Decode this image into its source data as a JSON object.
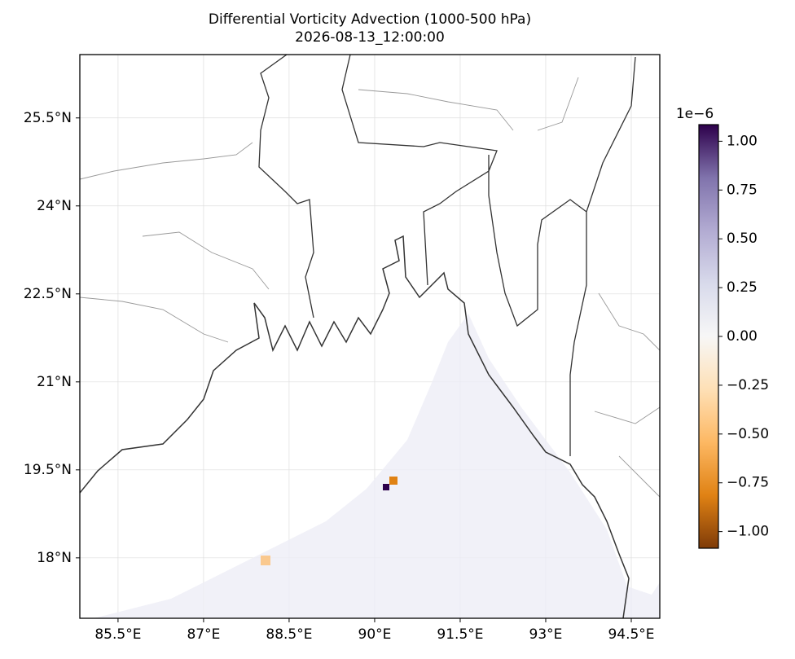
{
  "chart_data": {
    "type": "map",
    "title": "Differential Vorticity Advection (1000-500 hPa)",
    "subtitle": "2026-08-13_12:00:00",
    "xlim": [
      84.83,
      95.0
    ],
    "ylim": [
      16.97,
      26.58
    ],
    "xticks": [
      {
        "value": 85.5,
        "label": "85.5°E"
      },
      {
        "value": 87,
        "label": "87°E"
      },
      {
        "value": 88.5,
        "label": "88.5°E"
      },
      {
        "value": 90,
        "label": "90°E"
      },
      {
        "value": 91.5,
        "label": "91.5°E"
      },
      {
        "value": 93,
        "label": "93°E"
      },
      {
        "value": 94.5,
        "label": "94.5°E"
      }
    ],
    "yticks": [
      {
        "value": 18,
        "label": "18°N"
      },
      {
        "value": 19.5,
        "label": "19.5°N"
      },
      {
        "value": 21,
        "label": "21°N"
      },
      {
        "value": 22.5,
        "label": "22.5°N"
      },
      {
        "value": 24,
        "label": "24°N"
      },
      {
        "value": 25.5,
        "label": "25.5°N"
      }
    ],
    "grid": true,
    "colorbar": {
      "multiplier": "1e−6",
      "lim": [
        -1.085,
        1.085
      ],
      "colors": [
        "#7f3b08",
        "#e08214",
        "#fdb863",
        "#fee0b6",
        "#f7f7f7",
        "#d8daeb",
        "#b2abd2",
        "#8073ac",
        "#2d004b"
      ],
      "ticks": [
        {
          "value": 1,
          "label": "1.00"
        },
        {
          "value": 0.75,
          "label": "0.75"
        },
        {
          "value": 0.5,
          "label": "0.50"
        },
        {
          "value": 0.25,
          "label": "0.25"
        },
        {
          "value": 0,
          "label": "0.00"
        },
        {
          "value": -0.25,
          "label": "−0.25"
        },
        {
          "value": -0.5,
          "label": "−0.50"
        },
        {
          "value": -0.75,
          "label": "−0.75"
        },
        {
          "value": -1,
          "label": "−1.00"
        }
      ]
    }
  }
}
